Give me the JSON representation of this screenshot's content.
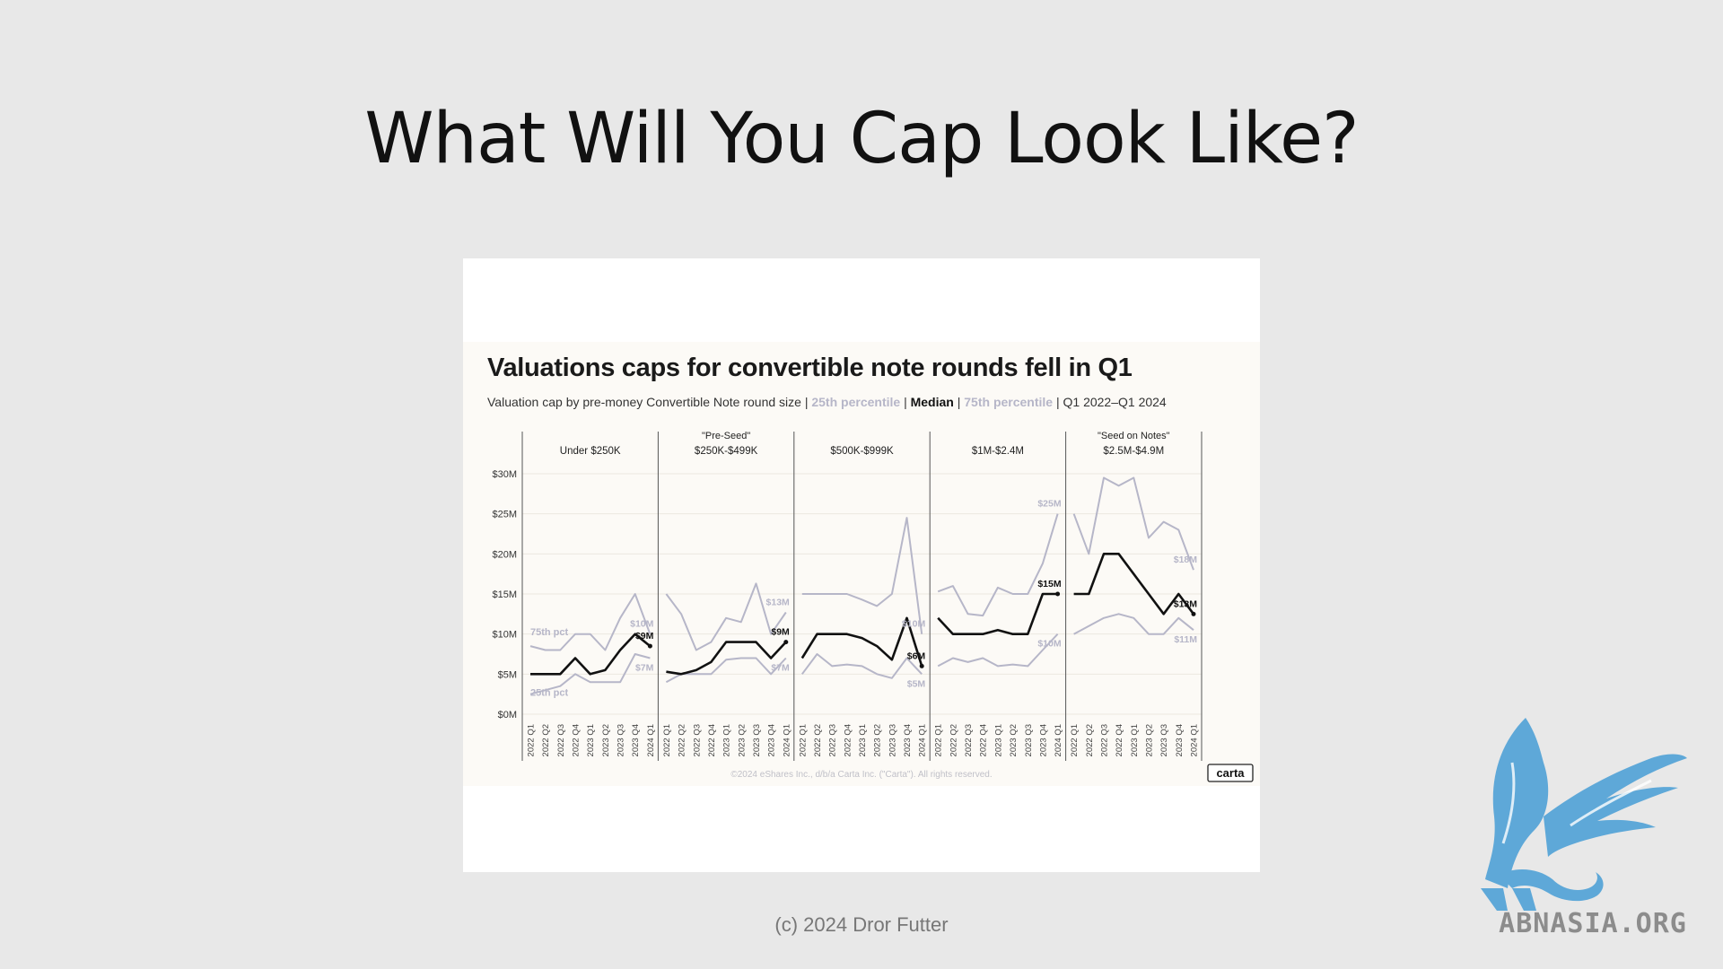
{
  "slide": {
    "title": "What Will You Cap Look Like?",
    "footer": "(c) 2024 Dror Futter",
    "logo_text": "ABNASIA.ORG"
  },
  "colors": {
    "background": "#e8e8e8",
    "median": "#111111",
    "percentile": "#b6b6c8",
    "logo_blue": "#5ea8d8"
  },
  "chart_data": {
    "type": "line",
    "title": "Valuations caps for convertible note rounds fell in Q1",
    "subtitle": {
      "prefix": "Valuation cap by pre-money Convertible Note round size | ",
      "p25": "25th percentile",
      "sep1": " | ",
      "median": "Median",
      "sep2": " | ",
      "p75": "75th percentile",
      "suffix": " | Q1 2022–Q1 2024"
    },
    "y_ticks": [
      "$30M",
      "$25M",
      "$20M",
      "$15M",
      "$10M",
      "$5M",
      "$0M"
    ],
    "y_tick_values": [
      30,
      25,
      20,
      15,
      10,
      5,
      0
    ],
    "ylim": [
      0,
      30
    ],
    "x": [
      "2022 Q1",
      "2022 Q2",
      "2022 Q3",
      "2022 Q4",
      "2023 Q1",
      "2023 Q2",
      "2023 Q3",
      "2023 Q4",
      "2024 Q1"
    ],
    "groups": [
      {
        "label": "Under $250K",
        "super": ""
      },
      {
        "label": "$250K-$499K",
        "super": "\"Pre-Seed\""
      },
      {
        "label": "$500K-$999K",
        "super": ""
      },
      {
        "label": "$1M-$2.4M",
        "super": ""
      },
      {
        "label": "$2.5M-$4.9M",
        "super": "\"Seed on Notes\""
      }
    ],
    "series": [
      {
        "name": "75th percentile",
        "color": "#b6b6c8",
        "values": [
          [
            8.5,
            8,
            8,
            10,
            10,
            8,
            12,
            15,
            10
          ],
          [
            15,
            12.5,
            8,
            9,
            12,
            11.5,
            16.3,
            10,
            12.7
          ],
          [
            15,
            15,
            15,
            15,
            14.3,
            13.5,
            15,
            24.5,
            10
          ],
          [
            15.3,
            16,
            12.5,
            12.3,
            15.8,
            15,
            15,
            18.8,
            25
          ],
          [
            25,
            20,
            29.5,
            28.5,
            29.5,
            22,
            24,
            23,
            18
          ]
        ]
      },
      {
        "name": "Median",
        "color": "#111111",
        "values": [
          [
            5,
            5,
            5,
            7,
            5,
            5.5,
            8,
            10,
            8.5
          ],
          [
            5.3,
            5,
            5.5,
            6.5,
            9,
            9,
            9,
            7,
            9
          ],
          [
            7,
            10,
            10,
            10,
            9.5,
            8.5,
            6.8,
            12,
            6
          ],
          [
            12,
            10,
            10,
            10,
            10.5,
            10,
            10,
            15,
            15
          ],
          [
            15,
            15,
            20,
            20,
            17.5,
            15,
            12.5,
            15,
            12.5
          ]
        ]
      },
      {
        "name": "25th percentile",
        "color": "#b6b6c8",
        "values": [
          [
            2.5,
            3,
            3.5,
            5,
            4,
            4,
            4,
            7.5,
            7
          ],
          [
            4,
            5,
            5,
            5,
            6.8,
            7,
            7,
            5,
            7
          ],
          [
            5,
            7.5,
            6,
            6.2,
            6,
            5,
            4.5,
            7,
            5
          ],
          [
            6,
            7,
            6.5,
            7,
            6,
            6.2,
            6,
            8,
            10
          ],
          [
            10,
            11,
            12,
            12.5,
            12,
            10,
            10,
            12,
            10.5
          ]
        ]
      }
    ],
    "end_labels": [
      {
        "p75": "$10M",
        "median": "$9M",
        "p25": "$7M"
      },
      {
        "p75": "$13M",
        "median": "$9M",
        "p25": "$7M"
      },
      {
        "p75": "$10M",
        "median": "$6M",
        "p25": "$5M"
      },
      {
        "p75": "$25M",
        "median": "$15M",
        "p25": "$10M"
      },
      {
        "p75": "$18M",
        "median": "$13M",
        "p25": "$11M"
      }
    ],
    "inline_labels": {
      "p75": "75th pct",
      "p25": "25th pct"
    },
    "credit": "©2024 eShares Inc., d/b/a Carta Inc. (\"Carta\"). All rights reserved.",
    "brand": "carta",
    "grid": true
  }
}
